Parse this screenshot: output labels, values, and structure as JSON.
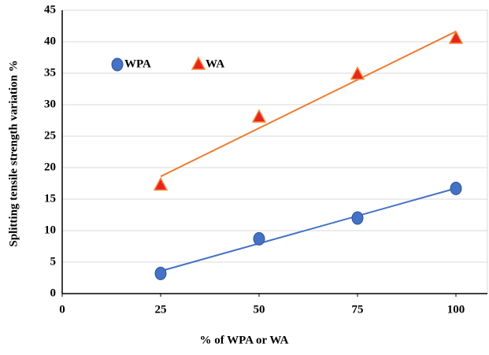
{
  "chart_data": {
    "type": "scatter",
    "x_label": "% of WPA or  WA",
    "y_label": "Splitting  tensile strength variation %",
    "x": [
      25,
      50,
      75,
      100
    ],
    "series": [
      {
        "name": "WPA",
        "color": "#4472c4",
        "marker": "circle",
        "values": [
          3.2,
          8.7,
          12,
          16.7
        ],
        "trendline": {
          "x": [
            25,
            100
          ],
          "values": [
            3.58,
            16.72
          ],
          "color": "#4472c4"
        }
      },
      {
        "name": "WA",
        "color": "#e8231c",
        "marker": "triangle",
        "values": [
          17.2,
          28,
          34.8,
          40.5
        ],
        "trendline": {
          "x": [
            25,
            100
          ],
          "values": [
            18.6,
            41.63
          ],
          "color": "#ed7d31"
        }
      }
    ],
    "xlim": [
      0,
      108
    ],
    "xticks": [
      0,
      25,
      50,
      75,
      100
    ],
    "ylim": [
      0,
      45
    ],
    "yticks": [
      0,
      5,
      10,
      15,
      20,
      25,
      30,
      35,
      40,
      45
    ],
    "grid": true,
    "legend": "upper left"
  }
}
